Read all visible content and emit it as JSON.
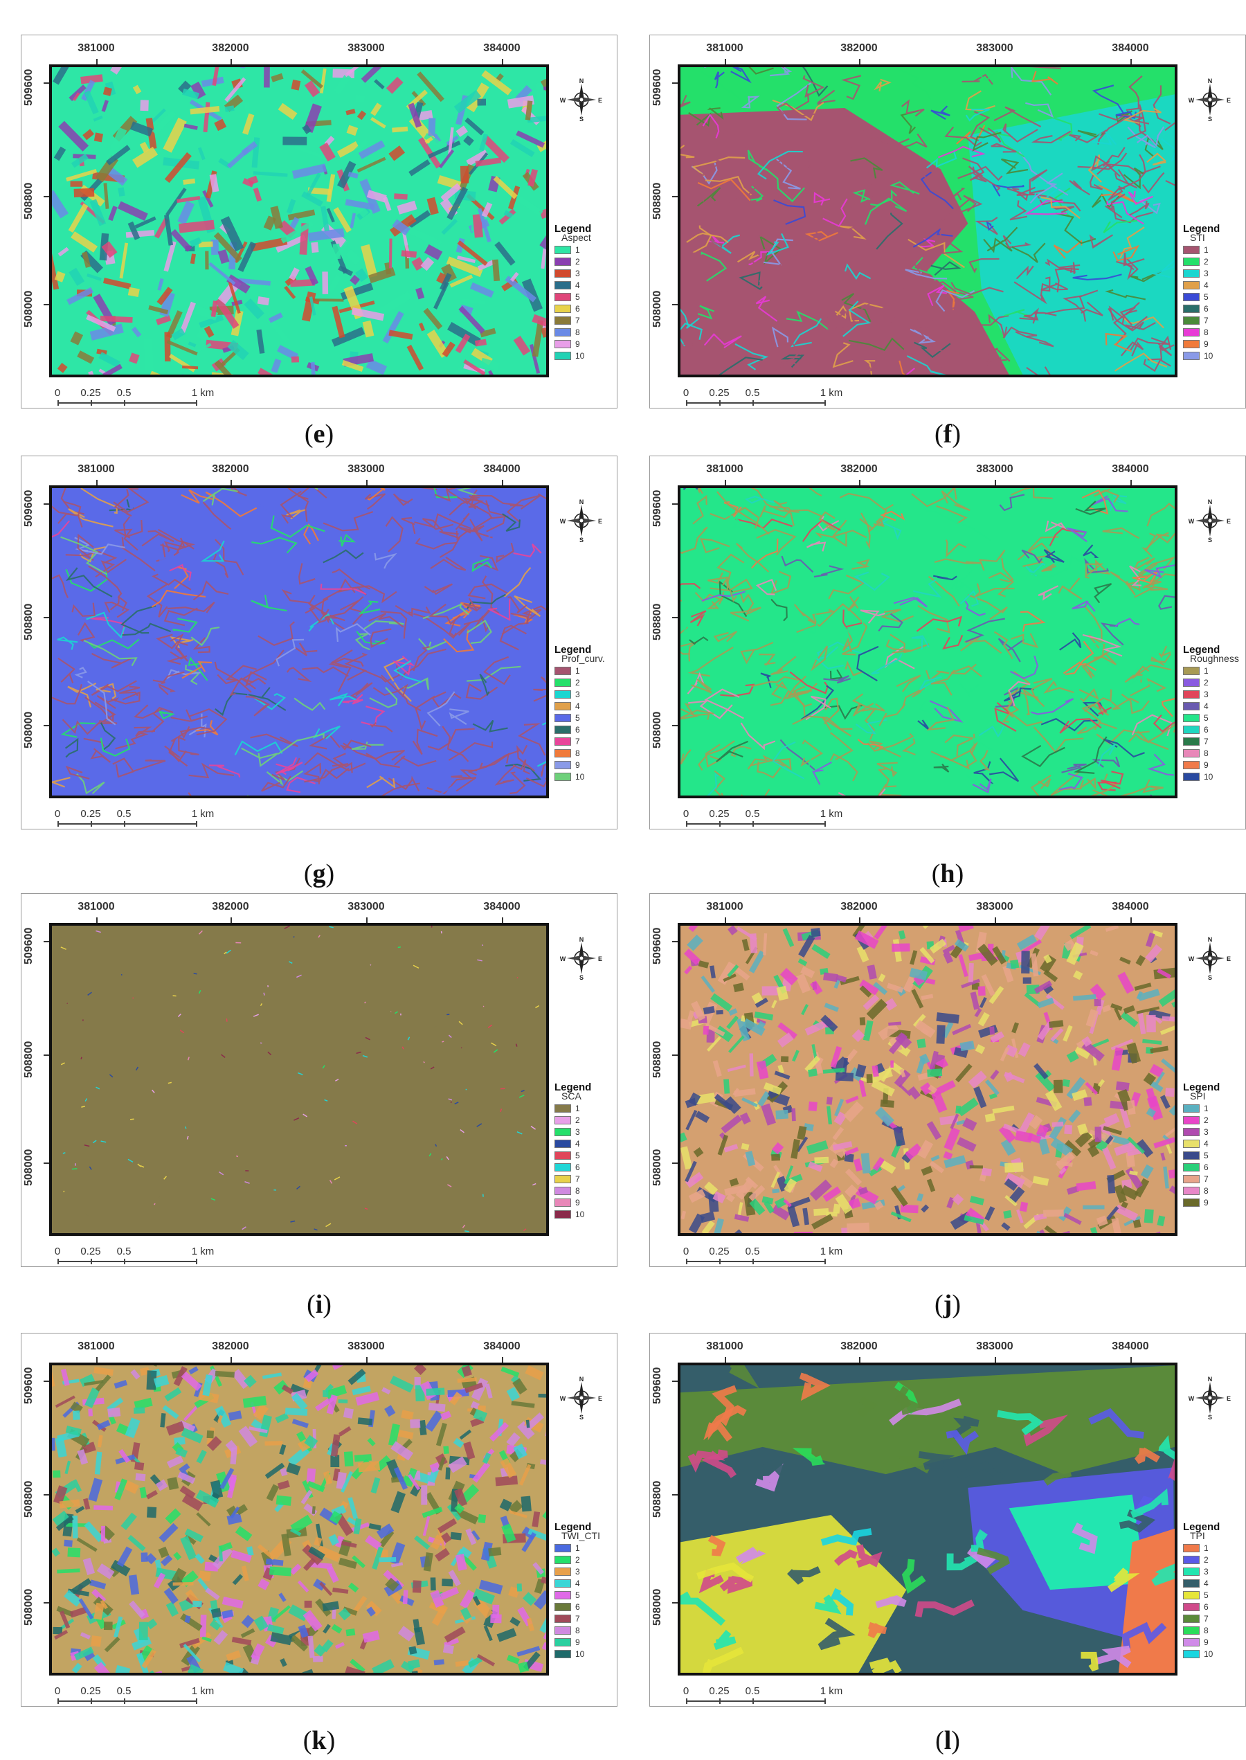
{
  "figure": {
    "x_ticks": [
      "381000",
      "382000",
      "383000",
      "384000"
    ],
    "y_ticks": [
      "509600",
      "508800",
      "508000"
    ],
    "scale_labels": [
      "0",
      "0.25",
      "0.5",
      "1 km"
    ],
    "north_labels": {
      "n": "N",
      "s": "S",
      "e": "E",
      "w": "W"
    },
    "legend_title": "Legend"
  },
  "panels": [
    {
      "letter": "e",
      "field": "Aspect",
      "style": "aspect",
      "classes": [
        "1",
        "2",
        "3",
        "4",
        "5",
        "6",
        "7",
        "8",
        "9",
        "10"
      ],
      "colors": [
        "#2ee6a6",
        "#8a3fb0",
        "#d14a2e",
        "#2a6e8a",
        "#e0457a",
        "#e8d24a",
        "#8a7a3a",
        "#6a8ae6",
        "#e89ee8",
        "#21d2b4"
      ]
    },
    {
      "letter": "f",
      "field": "STI",
      "style": "sti",
      "classes": [
        "1",
        "2",
        "3",
        "4",
        "5",
        "6",
        "7",
        "8",
        "9",
        "10"
      ],
      "colors": [
        "#a65470",
        "#24e06a",
        "#1ad6d0",
        "#e0a04a",
        "#3a4ad6",
        "#2a6e6a",
        "#4a8a3a",
        "#e83ad6",
        "#f07a3a",
        "#8a9ae8"
      ]
    },
    {
      "letter": "g",
      "field": "Prof_curv.",
      "style": "prof",
      "classes": [
        "1",
        "2",
        "3",
        "4",
        "5",
        "6",
        "7",
        "8",
        "9",
        "10"
      ],
      "colors": [
        "#a65470",
        "#24e06a",
        "#1ad6d0",
        "#e0a04a",
        "#5a6ae8",
        "#2a6e6a",
        "#e8459a",
        "#f07a3a",
        "#8a9ae8",
        "#6ed07a"
      ]
    },
    {
      "letter": "h",
      "field": "Roughness",
      "style": "rough",
      "classes": [
        "1",
        "2",
        "3",
        "4",
        "5",
        "6",
        "7",
        "8",
        "9",
        "10"
      ],
      "colors": [
        "#a89a54",
        "#8a5ae0",
        "#e0455a",
        "#6a5ab0",
        "#24e68a",
        "#21d6c0",
        "#2a7a4a",
        "#e887b8",
        "#f07a4a",
        "#2a4aa0"
      ]
    },
    {
      "letter": "i",
      "field": "SCA",
      "style": "sca",
      "classes": [
        "1",
        "2",
        "3",
        "4",
        "5",
        "6",
        "7",
        "8",
        "9",
        "10"
      ],
      "colors": [
        "#857a4a",
        "#e8a0e8",
        "#24e06a",
        "#2a4aa0",
        "#e0455a",
        "#21d6d6",
        "#e8d24a",
        "#d08ae0",
        "#e887b8",
        "#8a2a4a"
      ]
    },
    {
      "letter": "j",
      "field": "SPI",
      "style": "spi",
      "classes": [
        "1",
        "2",
        "3",
        "4",
        "5",
        "6",
        "7",
        "8",
        "9"
      ],
      "colors": [
        "#5ab0c0",
        "#e845c8",
        "#b04ab0",
        "#e8e06a",
        "#3a4a8a",
        "#2ad07a",
        "#e8a48a",
        "#e887c8",
        "#6a6a2a"
      ]
    },
    {
      "letter": "k",
      "field": "TWI_CTI",
      "style": "twi",
      "classes": [
        "1",
        "2",
        "3",
        "4",
        "5",
        "6",
        "7",
        "8",
        "9",
        "10"
      ],
      "colors": [
        "#4a6ae0",
        "#24e06a",
        "#e8a04a",
        "#3ad6d6",
        "#e06ae8",
        "#6a7a3a",
        "#a04a5a",
        "#d08ae0",
        "#2ad0a0",
        "#1e6a6a"
      ]
    },
    {
      "letter": "l",
      "field": "TPI",
      "style": "tpi",
      "classes": [
        "1",
        "2",
        "3",
        "4",
        "5",
        "6",
        "7",
        "8",
        "9",
        "10"
      ],
      "colors": [
        "#f07a4a",
        "#5a5ae8",
        "#22e6b0",
        "#355e6a",
        "#e6e63a",
        "#d04a8a",
        "#5a8a3a",
        "#2adc5a",
        "#d08ae8",
        "#1ad6e0"
      ]
    }
  ]
}
